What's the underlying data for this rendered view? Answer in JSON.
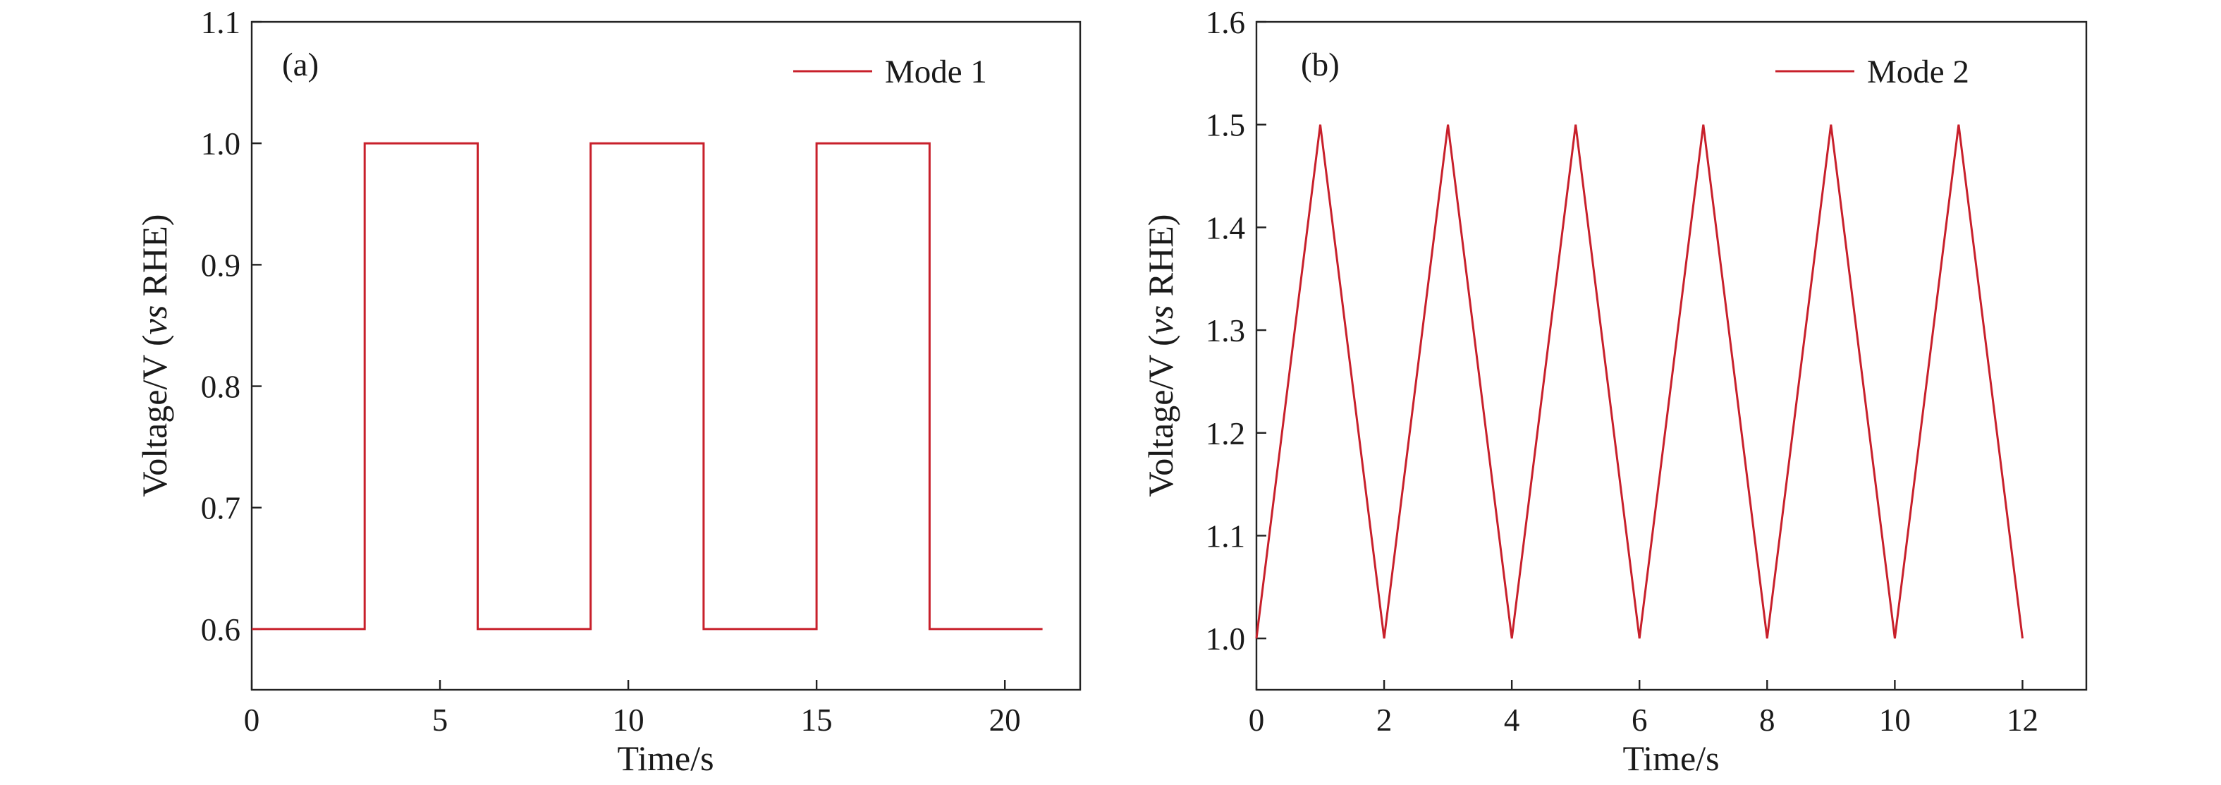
{
  "chart_data": [
    {
      "type": "line",
      "panel_label": "(a)",
      "xlabel": "Time/s",
      "ylabel_main": "Voltage/V (",
      "ylabel_italic": "vs",
      "ylabel_rest": " RHE)",
      "xlim": [
        0,
        22
      ],
      "ylim": [
        0.55,
        1.1
      ],
      "xticks": [
        0,
        5,
        10,
        15,
        20
      ],
      "xtick_labels": [
        "0",
        "5",
        "10",
        "15",
        "20"
      ],
      "yticks": [
        0.6,
        0.7,
        0.8,
        0.9,
        1.0,
        1.1
      ],
      "ytick_labels": [
        "0.6",
        "0.7",
        "0.8",
        "0.9",
        "1.0",
        "1.1"
      ],
      "legend_position": "top-right",
      "grid": false,
      "series": [
        {
          "name": "Mode 1",
          "color": "#c8202b",
          "x": [
            0,
            3,
            3,
            6,
            6,
            9,
            9,
            12,
            12,
            15,
            15,
            18,
            18,
            21
          ],
          "y": [
            0.6,
            0.6,
            1.0,
            1.0,
            0.6,
            0.6,
            1.0,
            1.0,
            0.6,
            0.6,
            1.0,
            1.0,
            0.6,
            0.6
          ]
        }
      ]
    },
    {
      "type": "line",
      "panel_label": "(b)",
      "xlabel": "Time/s",
      "ylabel_main": "Voltage/V (",
      "ylabel_italic": "vs",
      "ylabel_rest": " RHE)",
      "xlim": [
        0,
        13
      ],
      "ylim": [
        0.95,
        1.6
      ],
      "xticks": [
        0,
        2,
        4,
        6,
        8,
        10,
        12
      ],
      "xtick_labels": [
        "0",
        "2",
        "4",
        "6",
        "8",
        "10",
        "12"
      ],
      "yticks": [
        1.0,
        1.1,
        1.2,
        1.3,
        1.4,
        1.5,
        1.6
      ],
      "ytick_labels": [
        "1.0",
        "1.1",
        "1.2",
        "1.3",
        "1.4",
        "1.5",
        "1.6"
      ],
      "legend_position": "top-right",
      "grid": false,
      "series": [
        {
          "name": "Mode 2",
          "color": "#c8202b",
          "x": [
            0,
            1,
            2,
            3,
            4,
            5,
            6,
            7,
            8,
            9,
            10,
            11,
            12
          ],
          "y": [
            1.0,
            1.5,
            1.0,
            1.5,
            1.0,
            1.5,
            1.0,
            1.5,
            1.0,
            1.5,
            1.0,
            1.5,
            1.0
          ]
        }
      ]
    }
  ]
}
